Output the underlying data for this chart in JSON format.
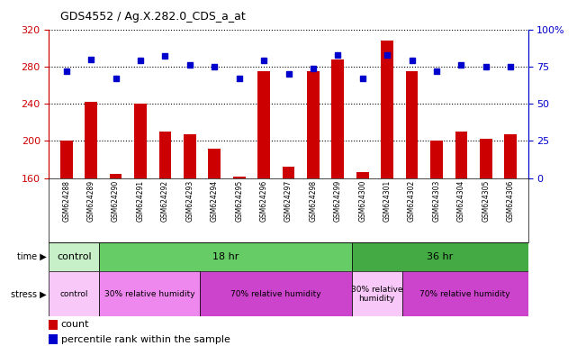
{
  "title": "GDS4552 / Ag.X.282.0_CDS_a_at",
  "samples": [
    "GSM624288",
    "GSM624289",
    "GSM624290",
    "GSM624291",
    "GSM624292",
    "GSM624293",
    "GSM624294",
    "GSM624295",
    "GSM624296",
    "GSM624297",
    "GSM624298",
    "GSM624299",
    "GSM624300",
    "GSM624301",
    "GSM624302",
    "GSM624303",
    "GSM624304",
    "GSM624305",
    "GSM624306"
  ],
  "counts": [
    200,
    242,
    165,
    240,
    210,
    207,
    192,
    162,
    275,
    172,
    275,
    288,
    167,
    308,
    275,
    200,
    210,
    202,
    207
  ],
  "percentiles": [
    72,
    80,
    67,
    79,
    82,
    76,
    75,
    67,
    79,
    70,
    74,
    83,
    67,
    83,
    79,
    72,
    76,
    75,
    75
  ],
  "ylim_left": [
    160,
    320
  ],
  "ylim_right": [
    0,
    100
  ],
  "yticks_left": [
    160,
    200,
    240,
    280,
    320
  ],
  "yticks_right": [
    0,
    25,
    50,
    75,
    100
  ],
  "ylabel_left_color": "#cc0000",
  "ylabel_right_color": "#0000cc",
  "bar_color": "#cc0000",
  "dot_color": "#0000cc",
  "bg_color": "#ffffff",
  "xticklabel_area_color": "#c0c0c0",
  "time_groups": [
    {
      "label": "control",
      "start": 0,
      "end": 2,
      "color": "#c8f0c8"
    },
    {
      "label": "18 hr",
      "start": 2,
      "end": 12,
      "color": "#66cc66"
    },
    {
      "label": "36 hr",
      "start": 12,
      "end": 19,
      "color": "#44aa44"
    }
  ],
  "stress_groups": [
    {
      "label": "control",
      "start": 0,
      "end": 2,
      "color": "#f8c8f8"
    },
    {
      "label": "30% relative humidity",
      "start": 2,
      "end": 6,
      "color": "#ee88ee"
    },
    {
      "label": "70% relative humidity",
      "start": 6,
      "end": 12,
      "color": "#cc44cc"
    },
    {
      "label": "30% relative\nhumidity",
      "start": 12,
      "end": 14,
      "color": "#f8c8f8"
    },
    {
      "label": "70% relative humidity",
      "start": 14,
      "end": 19,
      "color": "#cc44cc"
    }
  ]
}
